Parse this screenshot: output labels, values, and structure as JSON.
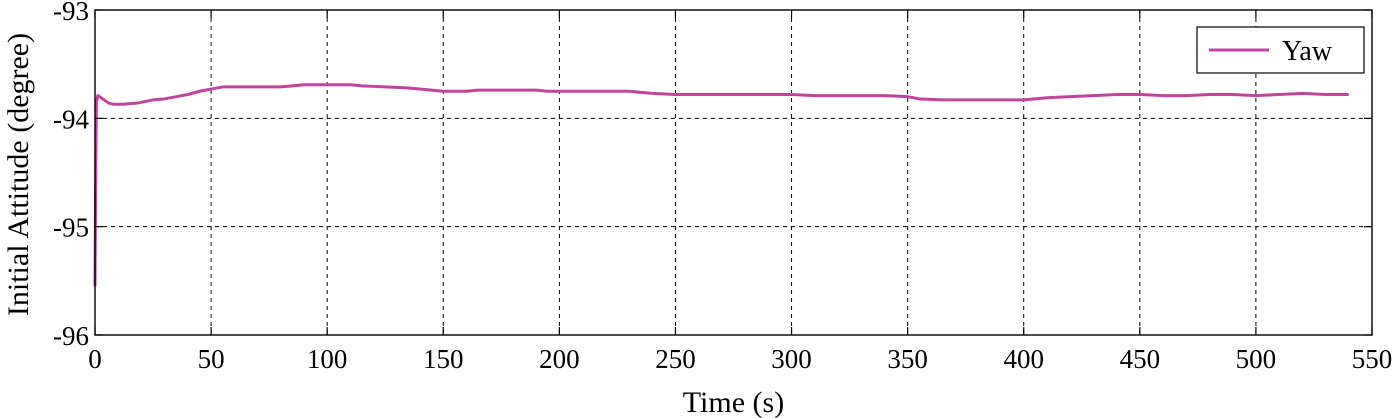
{
  "chart_data": {
    "type": "line",
    "title": "",
    "xlabel": "Time (s)",
    "ylabel": "Initial Attitude (degree)",
    "xlim": [
      0,
      550
    ],
    "ylim": [
      -96,
      -93
    ],
    "xticks": [
      0,
      50,
      100,
      150,
      200,
      250,
      300,
      350,
      400,
      450,
      500,
      550
    ],
    "yticks": [
      -96,
      -95,
      -94,
      -93
    ],
    "grid": true,
    "legend": {
      "position": "top-right",
      "entries": [
        "Yaw"
      ]
    },
    "colors": {
      "Yaw": "#c0449f"
    },
    "series": [
      {
        "name": "Yaw",
        "x": [
          0.0,
          0.3,
          0.6,
          1.2,
          2.0,
          4.0,
          6.0,
          8.0,
          12.0,
          18.0,
          25.0,
          30.0,
          35.0,
          40.0,
          45.0,
          50.0,
          55.0,
          60.0,
          70.0,
          80.0,
          85.0,
          90.0,
          100.0,
          110.0,
          115.0,
          125.0,
          135.0,
          145.0,
          150.0,
          160.0,
          165.0,
          180.0,
          190.0,
          195.0,
          205.0,
          215.0,
          230.0,
          240.0,
          250.0,
          255.0,
          270.0,
          285.0,
          300.0,
          310.0,
          320.0,
          330.0,
          340.0,
          350.0,
          355.0,
          365.0,
          380.0,
          395.0,
          400.0,
          410.0,
          420.0,
          430.0,
          440.0,
          450.0,
          460.0,
          470.0,
          480.0,
          490.0,
          500.0,
          510.0,
          520.0,
          530.0,
          540.0
        ],
        "y": [
          -95.55,
          -94.5,
          -93.85,
          -93.79,
          -93.8,
          -93.83,
          -93.86,
          -93.87,
          -93.87,
          -93.86,
          -93.83,
          -93.82,
          -93.8,
          -93.78,
          -93.75,
          -93.73,
          -93.71,
          -93.71,
          -93.71,
          -93.71,
          -93.7,
          -93.69,
          -93.69,
          -93.69,
          -93.7,
          -93.71,
          -93.72,
          -93.74,
          -93.75,
          -93.75,
          -93.74,
          -93.74,
          -93.74,
          -93.75,
          -93.75,
          -93.75,
          -93.75,
          -93.77,
          -93.78,
          -93.78,
          -93.78,
          -93.78,
          -93.78,
          -93.79,
          -93.79,
          -93.79,
          -93.79,
          -93.8,
          -93.82,
          -93.83,
          -93.83,
          -93.83,
          -93.83,
          -93.81,
          -93.8,
          -93.79,
          -93.78,
          -93.78,
          -93.79,
          -93.79,
          -93.78,
          -93.78,
          -93.79,
          -93.78,
          -93.77,
          -93.78,
          -93.78
        ]
      }
    ]
  }
}
